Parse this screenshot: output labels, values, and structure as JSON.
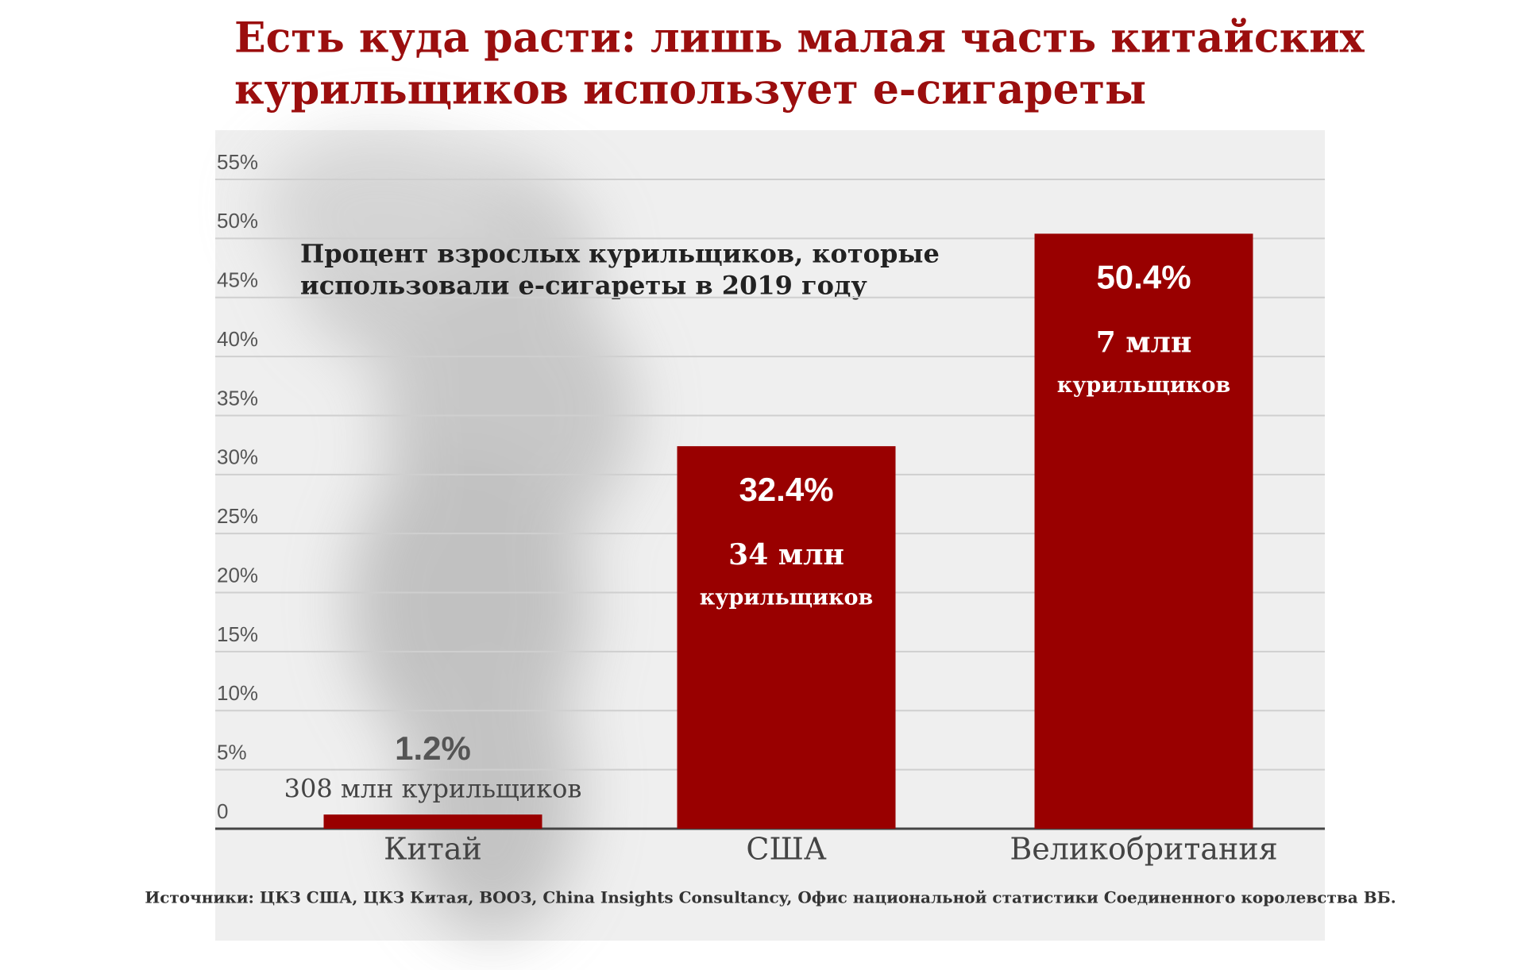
{
  "chart_data": {
    "type": "bar",
    "title": [
      "Есть куда расти: лишь малая часть китайских",
      "курильщиков использует е-сигареты"
    ],
    "annotation": [
      "Процент взрослых курильщиков, которые",
      "использовали е-сигареты в 2019 году"
    ],
    "categories": [
      "Китай",
      "США",
      "Великобритания"
    ],
    "values": [
      1.2,
      32.4,
      50.4
    ],
    "value_labels": [
      "1.2%",
      "32.4%",
      "50.4%"
    ],
    "bar_notes": [
      [
        "308 млн курильщиков"
      ],
      [
        "34 млн",
        "курильщиков"
      ],
      [
        "7 млн",
        "курильщиков"
      ]
    ],
    "color": "#990000",
    "ylim": [
      0,
      55
    ],
    "yticks": [
      0,
      {
        "value": 5,
        "label": "5%"
      },
      {
        "value": 10,
        "label": "10%"
      },
      {
        "value": 15,
        "label": "15%"
      },
      {
        "value": 20,
        "label": "20%"
      },
      {
        "value": 25,
        "label": "25%"
      },
      {
        "value": 30,
        "label": "30%"
      },
      {
        "value": 35,
        "label": "35%"
      },
      {
        "value": 40,
        "label": "40%"
      },
      {
        "value": 45,
        "label": "45%"
      },
      {
        "value": 50,
        "label": "50%"
      },
      {
        "value": 55,
        "label": "55%"
      }
    ],
    "grid": true,
    "source": "Источники: ЦКЗ США, ЦКЗ Китая, ВООЗ, China Insights Consultancy, Офис национальной статистики Соединенного королевства ВБ."
  }
}
